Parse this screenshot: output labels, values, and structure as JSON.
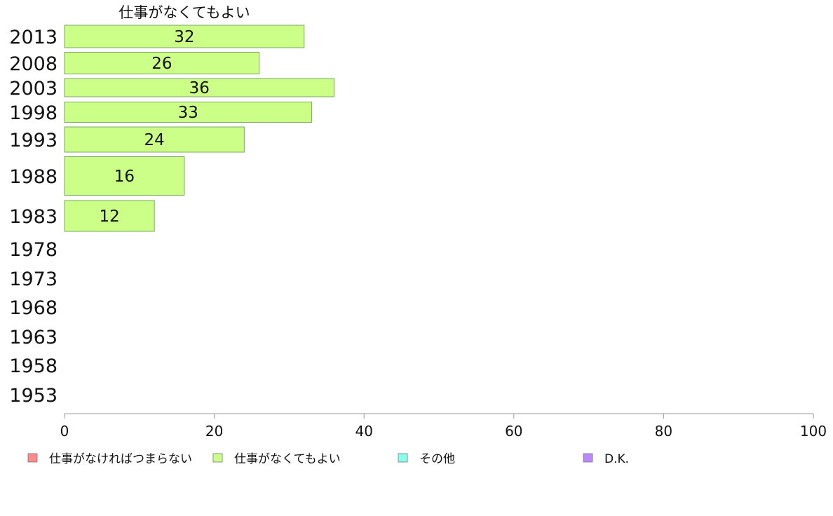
{
  "chart_data": {
    "type": "bar",
    "orientation": "horizontal",
    "title": "仕事がなくてもよい",
    "categories": [
      "2013",
      "2008",
      "2003",
      "1998",
      "1993",
      "1988",
      "1983",
      "1978",
      "1973",
      "1968",
      "1963",
      "1958",
      "1953"
    ],
    "series": [
      {
        "name": "仕事がなければつまらない",
        "color": "#ff8a8a",
        "values": [
          null,
          null,
          null,
          null,
          null,
          null,
          null,
          null,
          null,
          null,
          null,
          null,
          null
        ]
      },
      {
        "name": "仕事がなくてもよい",
        "color": "#ccff88",
        "values": [
          32,
          26,
          36,
          33,
          24,
          16,
          12,
          null,
          null,
          null,
          null,
          null,
          null
        ]
      },
      {
        "name": "その他",
        "color": "#88ffee",
        "values": [
          null,
          null,
          null,
          null,
          null,
          null,
          null,
          null,
          null,
          null,
          null,
          null,
          null
        ]
      },
      {
        "name": "D.K.",
        "color": "#bb88ff",
        "values": [
          null,
          null,
          null,
          null,
          null,
          null,
          null,
          null,
          null,
          null,
          null,
          null,
          null
        ]
      }
    ],
    "shown_series": "仕事がなくてもよい",
    "xlim": [
      0,
      100
    ],
    "xticks": [
      "0",
      "20",
      "40",
      "60",
      "80",
      "100"
    ],
    "grid": false,
    "legend": "bottom"
  }
}
